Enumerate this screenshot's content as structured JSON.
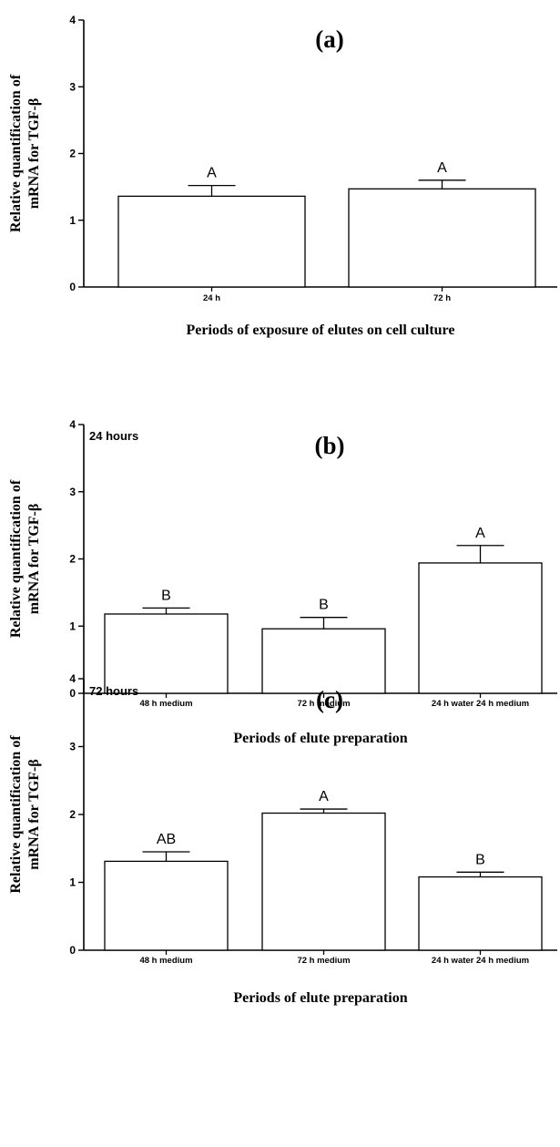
{
  "chart_data": [
    {
      "type": "bar",
      "panel_label": "(a)",
      "annotation": "",
      "categories": [
        "24 h",
        "72 h"
      ],
      "values": [
        1.36,
        1.47
      ],
      "errors": [
        0.16,
        0.13
      ],
      "significance": [
        "A",
        "A"
      ],
      "xlabel": "Periods of exposure of elutes on cell culture",
      "ylabel": [
        "Relative quantification of",
        "mRNA for TGF-β"
      ],
      "ylim": [
        0,
        4
      ],
      "yticks": [
        "0",
        "1",
        "2",
        "3",
        "4"
      ],
      "grid": false,
      "colors": {
        "bar_fill": "#ffffff",
        "bar_stroke": "#000000"
      }
    },
    {
      "type": "bar",
      "panel_label": "(b)",
      "annotation": "24 hours",
      "categories": [
        "48 h medium",
        "72 h medium",
        "24 h water 24 h medium"
      ],
      "values": [
        1.18,
        0.96,
        1.94
      ],
      "errors": [
        0.09,
        0.17,
        0.26
      ],
      "significance": [
        "B",
        "B",
        "A"
      ],
      "xlabel": "Periods of elute preparation",
      "ylabel": [
        "Relative quantification of",
        "mRNA for TGF-β"
      ],
      "ylim": [
        0,
        4
      ],
      "yticks": [
        "0",
        "1",
        "2",
        "3",
        "4"
      ],
      "grid": false,
      "colors": {
        "bar_fill": "#ffffff",
        "bar_stroke": "#000000"
      }
    },
    {
      "type": "bar",
      "panel_label": "(c)",
      "annotation": "72 hours",
      "categories": [
        "48 h medium",
        "72 h medium",
        "24 h water 24 h medium"
      ],
      "values": [
        1.31,
        2.02,
        1.08
      ],
      "errors": [
        0.14,
        0.06,
        0.07
      ],
      "significance": [
        "AB",
        "A",
        "B"
      ],
      "xlabel": "Periods of elute preparation",
      "ylabel": [
        "Relative quantification of",
        "mRNA for TGF-β"
      ],
      "ylim": [
        0,
        4
      ],
      "yticks": [
        "0",
        "1",
        "2",
        "3",
        "4"
      ],
      "grid": false,
      "colors": {
        "bar_fill": "#ffffff",
        "bar_stroke": "#000000"
      }
    }
  ]
}
